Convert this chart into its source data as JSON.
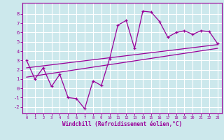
{
  "xlabel": "Windchill (Refroidissement éolien,°C)",
  "bg_color": "#cce8ec",
  "grid_color": "#ffffff",
  "line_color": "#990099",
  "xlim": [
    -0.5,
    23.5
  ],
  "ylim": [
    -2.7,
    9.2
  ],
  "xticks": [
    0,
    1,
    2,
    3,
    4,
    5,
    6,
    7,
    8,
    9,
    10,
    11,
    12,
    13,
    14,
    15,
    16,
    17,
    18,
    19,
    20,
    21,
    22,
    23
  ],
  "yticks": [
    -2,
    -1,
    0,
    1,
    2,
    3,
    4,
    5,
    6,
    7,
    8
  ],
  "scatter_x": [
    0,
    1,
    2,
    3,
    4,
    5,
    6,
    7,
    8,
    9,
    10,
    11,
    12,
    13,
    14,
    15,
    16,
    17,
    18,
    19,
    20,
    21,
    22,
    23
  ],
  "scatter_y": [
    3.0,
    1.0,
    2.2,
    0.2,
    1.5,
    -1.0,
    -1.1,
    -2.2,
    0.8,
    0.3,
    3.2,
    6.8,
    7.3,
    4.3,
    8.3,
    8.2,
    7.2,
    5.5,
    6.0,
    6.2,
    5.8,
    6.2,
    6.1,
    4.8
  ],
  "line1_x": [
    0,
    23
  ],
  "line1_y": [
    2.2,
    4.7
  ],
  "line2_x": [
    0,
    23
  ],
  "line2_y": [
    1.2,
    4.3
  ]
}
